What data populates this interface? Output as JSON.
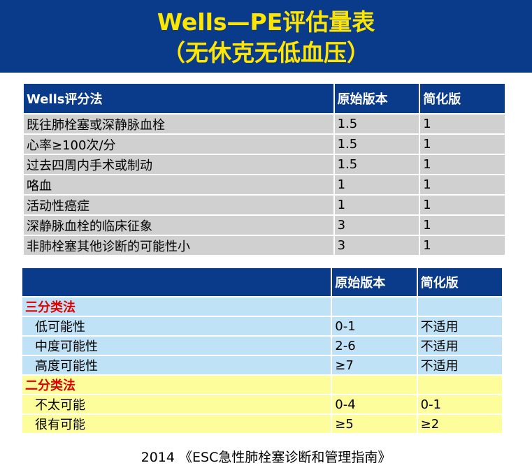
{
  "title": {
    "line1": "Wells—PE评估量表",
    "line2": "（无休克无低血压）"
  },
  "wells_table": {
    "headers": [
      "Wells评分法",
      "原始版本",
      "简化版"
    ],
    "rows": [
      [
        "既往肺栓塞或深静脉血栓",
        "1.5",
        "1"
      ],
      [
        "心率≥100次/分",
        "1.5",
        "1"
      ],
      [
        "过去四周内手术或制动",
        "1.5",
        "1"
      ],
      [
        "咯血",
        "1",
        "1"
      ],
      [
        "活动性癌症",
        "1",
        "1"
      ],
      [
        "深静脉血栓的临床征象",
        "3",
        "1"
      ],
      [
        "非肺栓塞其他诊断的可能性小",
        "3",
        "1"
      ]
    ]
  },
  "class_table": {
    "headers": [
      "",
      "原始版本",
      "简化版"
    ],
    "three_level": {
      "label": "三分类法",
      "rows": [
        [
          "低可能性",
          "0-1",
          "不适用"
        ],
        [
          "中度可能性",
          "2-6",
          "不适用"
        ],
        [
          "高度可能性",
          "≥7",
          "不适用"
        ]
      ]
    },
    "two_level": {
      "label": "二分类法",
      "rows": [
        [
          "不太可能",
          "0-4",
          "0-1"
        ],
        [
          "很有可能",
          "≥5",
          "≥2"
        ]
      ]
    }
  },
  "footer": "2014 《ESC急性肺栓塞诊断和管理指南》",
  "colors": {
    "banner": "#0a3a8a",
    "title": "#ffe600",
    "wells_row": "#d0d0d0",
    "three_level_bg": "#bfe2f6",
    "two_level_bg": "#fdfd9c",
    "section_label": "#e00000"
  }
}
